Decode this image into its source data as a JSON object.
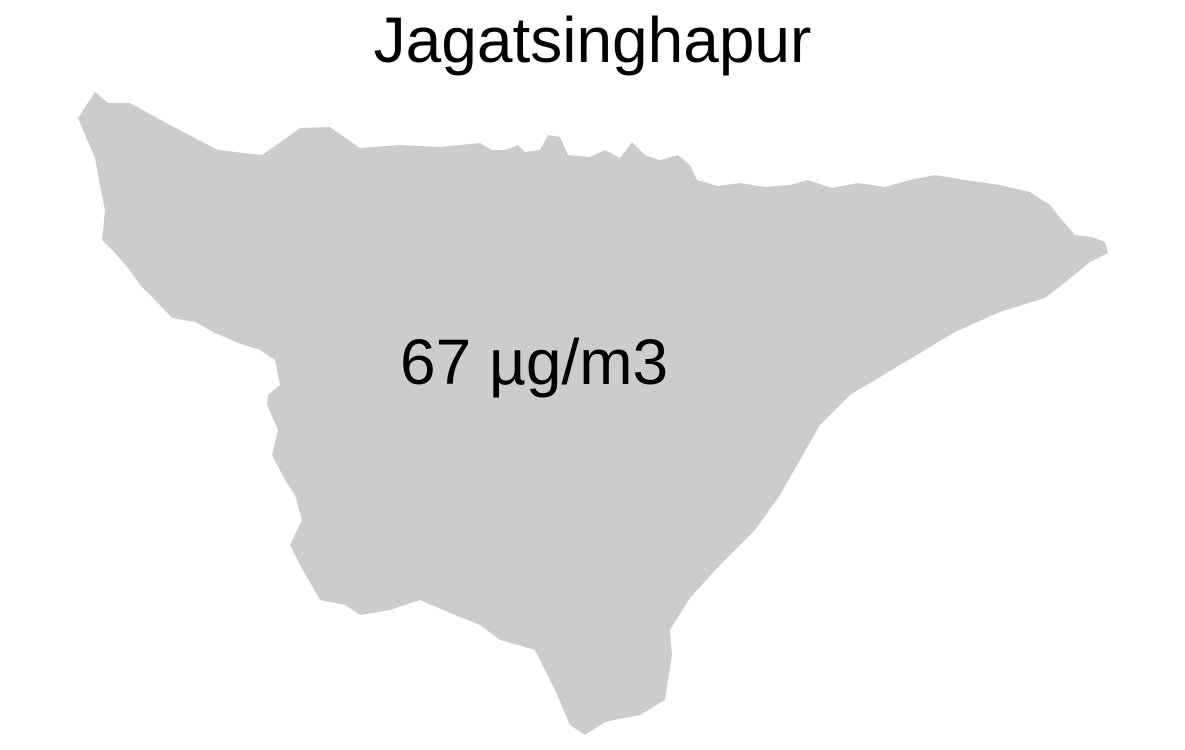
{
  "map": {
    "title": "Jagatsinghapur",
    "region_name": "Jagatsinghapur",
    "value_label": "67 µg/m3",
    "fill_color": "#cccccc",
    "background_color": "#ffffff",
    "text_color": "#000000"
  }
}
